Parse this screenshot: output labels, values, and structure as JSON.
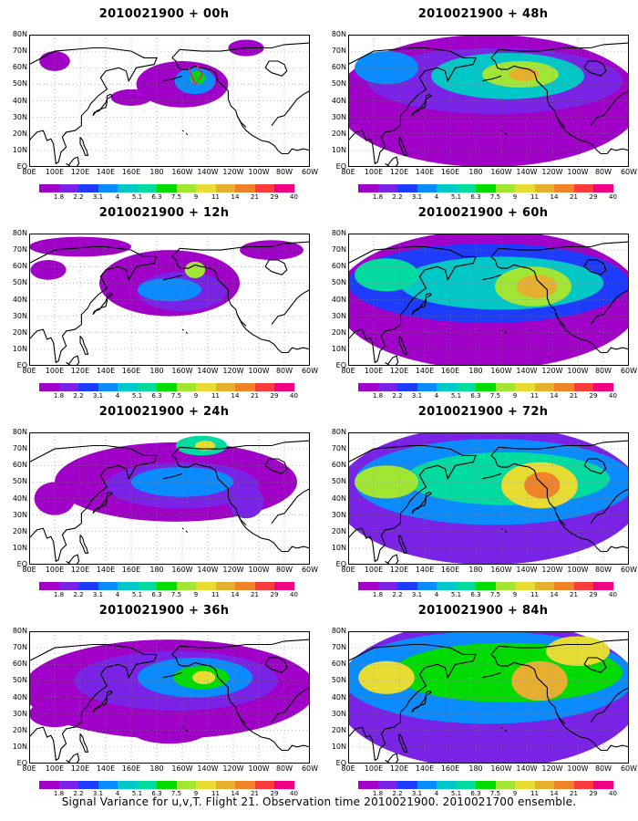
{
  "panels": [
    {
      "title": "2010021900 + 00h",
      "level": 0
    },
    {
      "title": "2010021900 + 48h",
      "level": 4
    },
    {
      "title": "2010021900 + 12h",
      "level": 1
    },
    {
      "title": "2010021900 + 60h",
      "level": 5
    },
    {
      "title": "2010021900 + 24h",
      "level": 2
    },
    {
      "title": "2010021900 + 72h",
      "level": 6
    },
    {
      "title": "2010021900 + 36h",
      "level": 3
    },
    {
      "title": "2010021900 + 84h",
      "level": 7
    }
  ],
  "y_labels": [
    "80N",
    "70N",
    "60N",
    "50N",
    "40N",
    "30N",
    "20N",
    "10N",
    "EQ"
  ],
  "x_labels": [
    "80E",
    "100E",
    "120E",
    "140E",
    "160E",
    "180",
    "160W",
    "140W",
    "120W",
    "100W",
    "80W",
    "60W"
  ],
  "colorbar": {
    "labels": [
      "1.8",
      "2.2",
      "3.1",
      "4",
      "5.1",
      "6.3",
      "7.5",
      "9",
      "11",
      "14",
      "21",
      "29",
      "40"
    ],
    "colors": [
      "#a000c8",
      "#7a22e6",
      "#1e3cff",
      "#0a8cff",
      "#00c8c8",
      "#00dca0",
      "#00dc00",
      "#a0e632",
      "#e6dc32",
      "#e6af2d",
      "#f08228",
      "#fa3c3c",
      "#f00082"
    ]
  },
  "footer": "Signal Variance for u,v,T. Flight 21. Observation time 2010021900. 2010021700 ensemble."
}
